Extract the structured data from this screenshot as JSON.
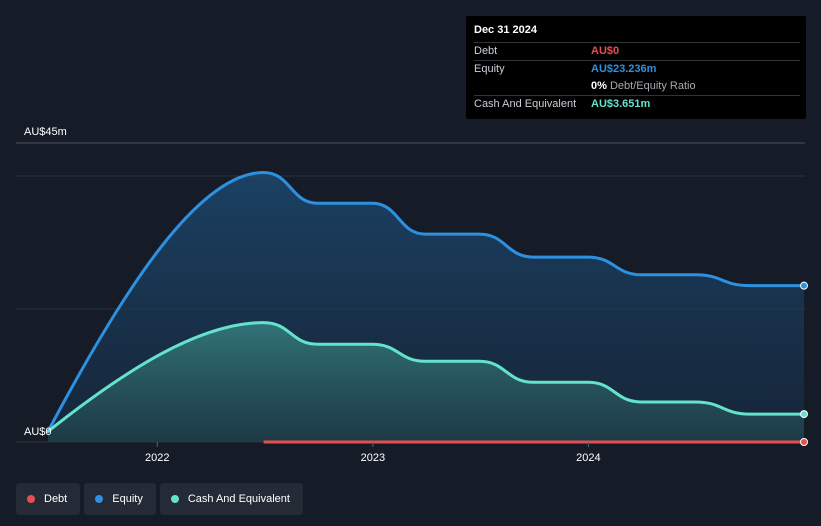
{
  "tooltip": {
    "date": "Dec 31 2024",
    "rows": [
      {
        "label": "Debt",
        "value": "AU$0"
      },
      {
        "label": "Equity",
        "value": "AU$23.236m"
      },
      {
        "label": "",
        "value": "0%",
        "suffix": "Debt/Equity Ratio"
      },
      {
        "label": "Cash And Equivalent",
        "value": "AU$3.651m"
      }
    ]
  },
  "colors": {
    "background": "#161c27",
    "debt": "#e64f50",
    "equity": "#2d91e0",
    "cash": "#64e3cc",
    "grid": "#2b323d",
    "axis_text": "#ffffff"
  },
  "chart_data": {
    "type": "area",
    "title": "",
    "xlabel": "",
    "ylabel": "",
    "y_top_label": "AU$45m",
    "y_bottom_label": "AU$0",
    "ylim": [
      0,
      45
    ],
    "xlim": [
      "2021-06-30",
      "2024-12-31"
    ],
    "x_ticks": [
      "2022",
      "2023",
      "2024"
    ],
    "x_tick_dates": [
      "2022-01-01",
      "2023-01-01",
      "2024-01-01"
    ],
    "grid": true,
    "legend_position": "bottom-left",
    "series": [
      {
        "name": "Debt",
        "color_key": "debt",
        "points": [
          {
            "x": "2022-06-30",
            "y": 0
          },
          {
            "x": "2024-12-31",
            "y": 0
          }
        ]
      },
      {
        "name": "Equity",
        "color_key": "equity",
        "points": [
          {
            "x": "2021-06-30",
            "y": 1.0
          },
          {
            "x": "2022-06-30",
            "y": 40.5
          },
          {
            "x": "2022-09-30",
            "y": 35.8
          },
          {
            "x": "2022-12-31",
            "y": 35.8
          },
          {
            "x": "2023-03-31",
            "y": 31.1
          },
          {
            "x": "2023-06-30",
            "y": 31.1
          },
          {
            "x": "2023-09-30",
            "y": 27.6
          },
          {
            "x": "2023-12-31",
            "y": 27.6
          },
          {
            "x": "2024-03-31",
            "y": 24.9
          },
          {
            "x": "2024-06-30",
            "y": 24.9
          },
          {
            "x": "2024-09-30",
            "y": 23.236
          },
          {
            "x": "2024-12-31",
            "y": 23.236
          }
        ]
      },
      {
        "name": "Cash And Equivalent",
        "color_key": "cash",
        "points": [
          {
            "x": "2021-06-30",
            "y": 1.0
          },
          {
            "x": "2022-06-30",
            "y": 17.6
          },
          {
            "x": "2022-09-30",
            "y": 14.3
          },
          {
            "x": "2022-12-31",
            "y": 14.3
          },
          {
            "x": "2023-03-31",
            "y": 11.7
          },
          {
            "x": "2023-06-30",
            "y": 11.7
          },
          {
            "x": "2023-09-30",
            "y": 8.5
          },
          {
            "x": "2023-12-31",
            "y": 8.5
          },
          {
            "x": "2024-03-31",
            "y": 5.5
          },
          {
            "x": "2024-06-30",
            "y": 5.5
          },
          {
            "x": "2024-09-30",
            "y": 3.651
          },
          {
            "x": "2024-12-31",
            "y": 3.651
          }
        ]
      }
    ]
  },
  "legend": [
    {
      "label": "Debt",
      "color_key": "debt"
    },
    {
      "label": "Equity",
      "color_key": "equity"
    },
    {
      "label": "Cash And Equivalent",
      "color_key": "cash"
    }
  ]
}
